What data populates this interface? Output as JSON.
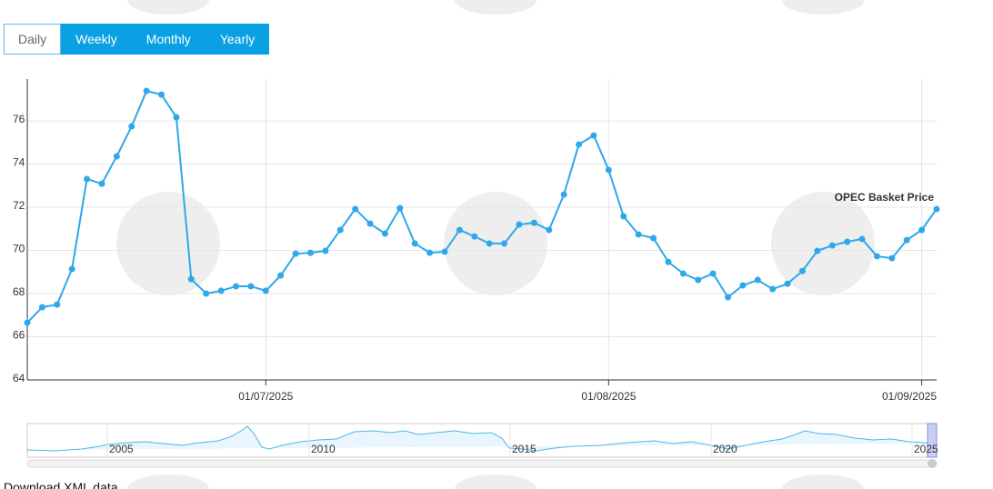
{
  "range_selector": {
    "buttons": [
      "Daily",
      "Weekly",
      "Monthly",
      "Yearly"
    ],
    "selected": 0
  },
  "chart_data": {
    "type": "line",
    "categories": [
      null,
      null,
      null,
      null,
      null,
      null,
      null,
      null,
      null,
      null,
      null,
      null,
      null,
      null,
      null,
      null,
      "01/07/2025",
      null,
      null,
      null,
      null,
      null,
      null,
      null,
      null,
      null,
      null,
      null,
      null,
      null,
      null,
      null,
      null,
      null,
      null,
      null,
      null,
      null,
      null,
      "01/08/2025",
      null,
      null,
      null,
      null,
      null,
      null,
      null,
      null,
      null,
      null,
      null,
      null,
      null,
      null,
      null,
      null,
      null,
      null,
      null,
      null,
      "01/09/2025",
      null
    ],
    "series": [
      {
        "name": "OPEC Basket Price",
        "color": "#2ea8ea",
        "values": [
          66.65,
          67.37,
          67.49,
          69.14,
          73.31,
          73.09,
          74.36,
          75.75,
          77.39,
          77.22,
          76.17,
          68.67,
          68.0,
          68.13,
          68.34,
          68.34,
          68.13,
          68.84,
          69.85,
          69.89,
          69.98,
          70.95,
          71.92,
          71.24,
          70.78,
          71.96,
          70.32,
          69.89,
          69.94,
          70.95,
          70.65,
          70.32,
          70.32,
          71.2,
          71.28,
          70.95,
          72.59,
          74.91,
          75.33,
          73.73,
          71.58,
          70.74,
          70.57,
          69.47,
          68.93,
          68.63,
          68.93,
          67.83,
          68.38,
          68.63,
          68.21,
          68.46,
          69.05,
          69.98,
          70.23,
          70.4,
          70.53,
          69.73,
          69.64,
          70.48,
          70.95,
          71.92
        ]
      }
    ],
    "ylim": [
      64,
      77.94
    ],
    "yticks": [
      64,
      66,
      68,
      70,
      72,
      74,
      76
    ],
    "grid": true
  },
  "navigator": {
    "labels": [
      "2005",
      "2010",
      "2015",
      "2020",
      "2025"
    ]
  },
  "download_link": "Download XML data"
}
